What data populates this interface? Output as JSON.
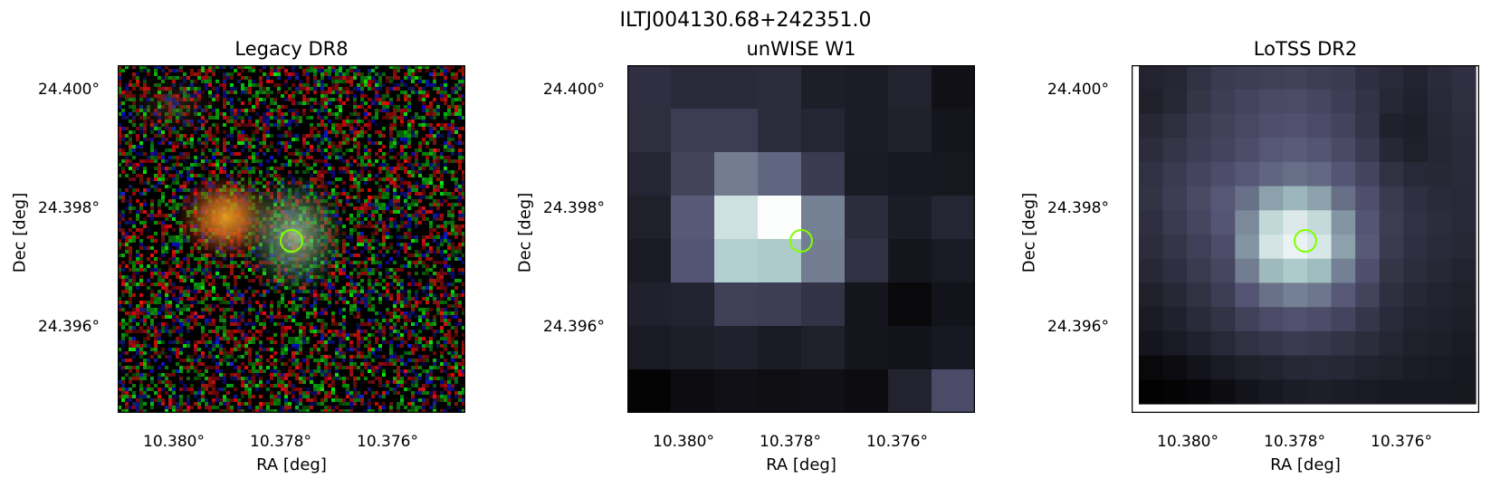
{
  "figure": {
    "title": "ILTJ004130.68+242351.0"
  },
  "panels": [
    {
      "id": "legacy",
      "title": "Legacy DR8",
      "xlabel": "RA [deg]",
      "ylabel": "Dec [deg]",
      "xticks": [
        "10.380°",
        "10.378°",
        "10.376°"
      ],
      "yticks": [
        "24.400°",
        "24.398°",
        "24.396°"
      ],
      "marker_color": "#7fff00"
    },
    {
      "id": "unwise",
      "title": "unWISE W1",
      "xlabel": "RA [deg]",
      "ylabel": "Dec [deg]",
      "xticks": [
        "10.380°",
        "10.378°",
        "10.376°"
      ],
      "yticks": [
        "24.400°",
        "24.398°",
        "24.396°"
      ],
      "marker_color": "#7fff00"
    },
    {
      "id": "lotss",
      "title": "LoTSS DR2",
      "xlabel": "RA [deg]",
      "ylabel": "Dec [deg]",
      "xticks": [
        "10.380°",
        "10.378°",
        "10.376°"
      ],
      "yticks": [
        "24.400°",
        "24.398°",
        "24.396°"
      ],
      "marker_color": "#7fff00"
    }
  ],
  "unwise_pixels": [
    [
      54,
      48,
      48,
      50,
      34,
      32,
      40,
      18
    ],
    [
      52,
      68,
      68,
      50,
      42,
      32,
      36,
      24
    ],
    [
      42,
      76,
      130,
      110,
      66,
      30,
      28,
      26
    ],
    [
      36,
      100,
      220,
      252,
      132,
      50,
      32,
      42
    ],
    [
      30,
      96,
      200,
      196,
      130,
      56,
      24,
      30
    ],
    [
      38,
      40,
      72,
      70,
      58,
      24,
      10,
      22
    ],
    [
      30,
      34,
      38,
      30,
      36,
      24,
      22,
      28
    ],
    [
      4,
      14,
      18,
      16,
      18,
      14,
      40,
      86
    ]
  ],
  "lotss_pixels": [
    [
      40,
      42,
      56,
      66,
      70,
      72,
      74,
      70,
      66,
      54,
      48,
      40,
      48,
      54
    ],
    [
      36,
      44,
      60,
      70,
      78,
      84,
      86,
      80,
      70,
      58,
      44,
      38,
      46,
      52
    ],
    [
      44,
      52,
      66,
      74,
      82,
      90,
      92,
      86,
      76,
      60,
      38,
      34,
      44,
      50
    ],
    [
      50,
      60,
      70,
      78,
      88,
      98,
      102,
      96,
      84,
      66,
      44,
      36,
      42,
      48
    ],
    [
      56,
      66,
      78,
      88,
      98,
      110,
      118,
      112,
      96,
      78,
      56,
      46,
      44,
      48
    ],
    [
      58,
      70,
      84,
      98,
      120,
      160,
      178,
      160,
      118,
      90,
      66,
      54,
      48,
      46
    ],
    [
      54,
      66,
      80,
      96,
      140,
      210,
      230,
      212,
      150,
      96,
      68,
      56,
      50,
      46
    ],
    [
      50,
      60,
      72,
      88,
      150,
      224,
      240,
      226,
      160,
      100,
      66,
      54,
      48,
      44
    ],
    [
      44,
      54,
      66,
      80,
      130,
      180,
      196,
      182,
      132,
      90,
      60,
      50,
      44,
      40
    ],
    [
      36,
      44,
      56,
      70,
      96,
      120,
      132,
      124,
      100,
      76,
      54,
      44,
      40,
      36
    ],
    [
      30,
      38,
      48,
      58,
      74,
      86,
      92,
      88,
      78,
      62,
      48,
      40,
      38,
      34
    ],
    [
      24,
      30,
      38,
      46,
      56,
      62,
      66,
      64,
      58,
      50,
      42,
      36,
      34,
      30
    ],
    [
      10,
      14,
      22,
      30,
      36,
      40,
      44,
      46,
      44,
      40,
      36,
      32,
      30,
      28
    ],
    [
      2,
      4,
      8,
      14,
      22,
      28,
      32,
      34,
      32,
      30,
      28,
      28,
      28,
      26
    ]
  ]
}
